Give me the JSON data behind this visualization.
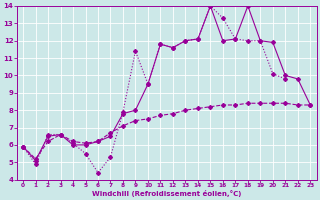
{
  "xlabel": "Windchill (Refroidissement éolien,°C)",
  "bg_color": "#cce8e8",
  "grid_color": "#b8d8d8",
  "line_color": "#990099",
  "xlim": [
    -0.5,
    23.5
  ],
  "ylim": [
    4,
    14
  ],
  "yticks": [
    4,
    5,
    6,
    7,
    8,
    9,
    10,
    11,
    12,
    13,
    14
  ],
  "xticks": [
    0,
    1,
    2,
    3,
    4,
    5,
    6,
    7,
    8,
    9,
    10,
    11,
    12,
    13,
    14,
    15,
    16,
    17,
    18,
    19,
    20,
    21,
    22,
    23
  ],
  "curve1_x": [
    0,
    1,
    2,
    3,
    4,
    5,
    6,
    7,
    8,
    9,
    10,
    11,
    12,
    13,
    14,
    15,
    16,
    17,
    18,
    19,
    20,
    21
  ],
  "curve1_y": [
    5.9,
    4.9,
    6.6,
    6.6,
    6.1,
    5.5,
    4.4,
    5.3,
    7.9,
    11.4,
    9.5,
    11.8,
    11.6,
    12.0,
    12.1,
    14.0,
    13.3,
    12.1,
    12.0,
    12.0,
    10.1,
    9.8
  ],
  "curve2_x": [
    0,
    1,
    2,
    3,
    4,
    5,
    6,
    7,
    8,
    9,
    10,
    11,
    12,
    13,
    14,
    15,
    16,
    17,
    18,
    19,
    20,
    21,
    22,
    23
  ],
  "curve2_y": [
    5.9,
    5.1,
    6.5,
    6.6,
    6.0,
    6.0,
    6.2,
    6.5,
    7.8,
    8.0,
    9.5,
    11.8,
    11.6,
    12.0,
    12.1,
    14.0,
    12.0,
    12.1,
    14.0,
    12.0,
    11.9,
    10.0,
    9.8,
    8.3
  ],
  "curve3_x": [
    0,
    1,
    2,
    3,
    4,
    5,
    6,
    7,
    8,
    9,
    10,
    11,
    12,
    13,
    14,
    15,
    16,
    17,
    18,
    19,
    20,
    21,
    22,
    23
  ],
  "curve3_y": [
    5.9,
    5.2,
    6.2,
    6.6,
    6.2,
    6.1,
    6.2,
    6.7,
    7.1,
    7.4,
    7.5,
    7.7,
    7.8,
    8.0,
    8.1,
    8.2,
    8.3,
    8.3,
    8.4,
    8.4,
    8.4,
    8.4,
    8.3,
    8.3
  ]
}
